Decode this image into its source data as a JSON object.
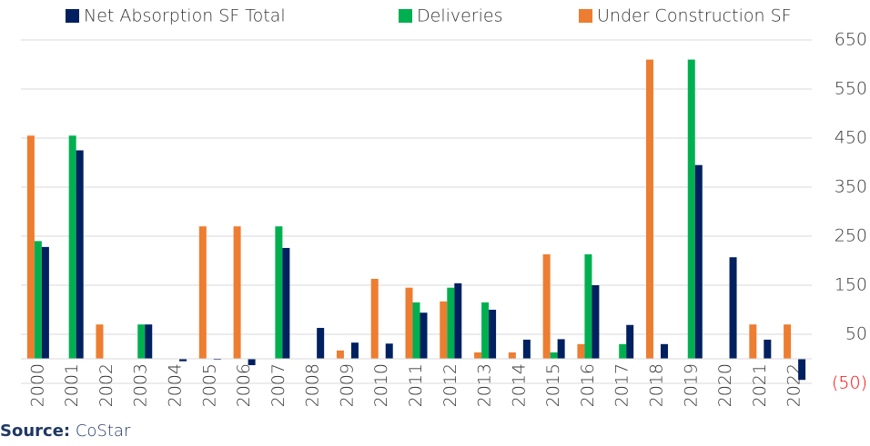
{
  "chart_data": {
    "type": "bar",
    "categories": [
      "2000",
      "2001",
      "2002",
      "2003",
      "2004",
      "2005",
      "2006",
      "2007",
      "2008",
      "2009",
      "2010",
      "2011",
      "2012",
      "2013",
      "2014",
      "2015",
      "2016",
      "2017",
      "2018",
      "2019",
      "2020",
      "2021",
      "2022"
    ],
    "series": [
      {
        "name": "Under Construction SF",
        "color": "#ed7d31",
        "values": [
          455,
          null,
          70,
          null,
          null,
          270,
          270,
          null,
          null,
          17,
          163,
          145,
          117,
          13,
          13,
          213,
          30,
          null,
          610,
          null,
          null,
          70,
          70
        ]
      },
      {
        "name": "Deliveries",
        "color": "#00b050",
        "values": [
          240,
          455,
          null,
          70,
          null,
          null,
          null,
          270,
          null,
          null,
          null,
          115,
          145,
          115,
          null,
          13,
          213,
          30,
          null,
          610,
          null,
          null,
          null
        ]
      },
      {
        "name": "Net Absorption SF Total",
        "color": "#002060",
        "values": [
          228,
          425,
          null,
          70,
          -5,
          -2,
          -13,
          226,
          63,
          33,
          31,
          94,
          154,
          100,
          39,
          40,
          150,
          69,
          30,
          395,
          207,
          39,
          -43
        ]
      }
    ],
    "legend_order": [
      2,
      1,
      0
    ],
    "ylim": [
      -50,
      650
    ],
    "yticks": [
      {
        "value": -50,
        "label": "(50)"
      },
      50,
      150,
      250,
      350,
      450,
      550,
      650
    ],
    "negative_tick_color": "#ff0000",
    "grid": true,
    "source_label": "Source:",
    "source": "CoStar"
  }
}
